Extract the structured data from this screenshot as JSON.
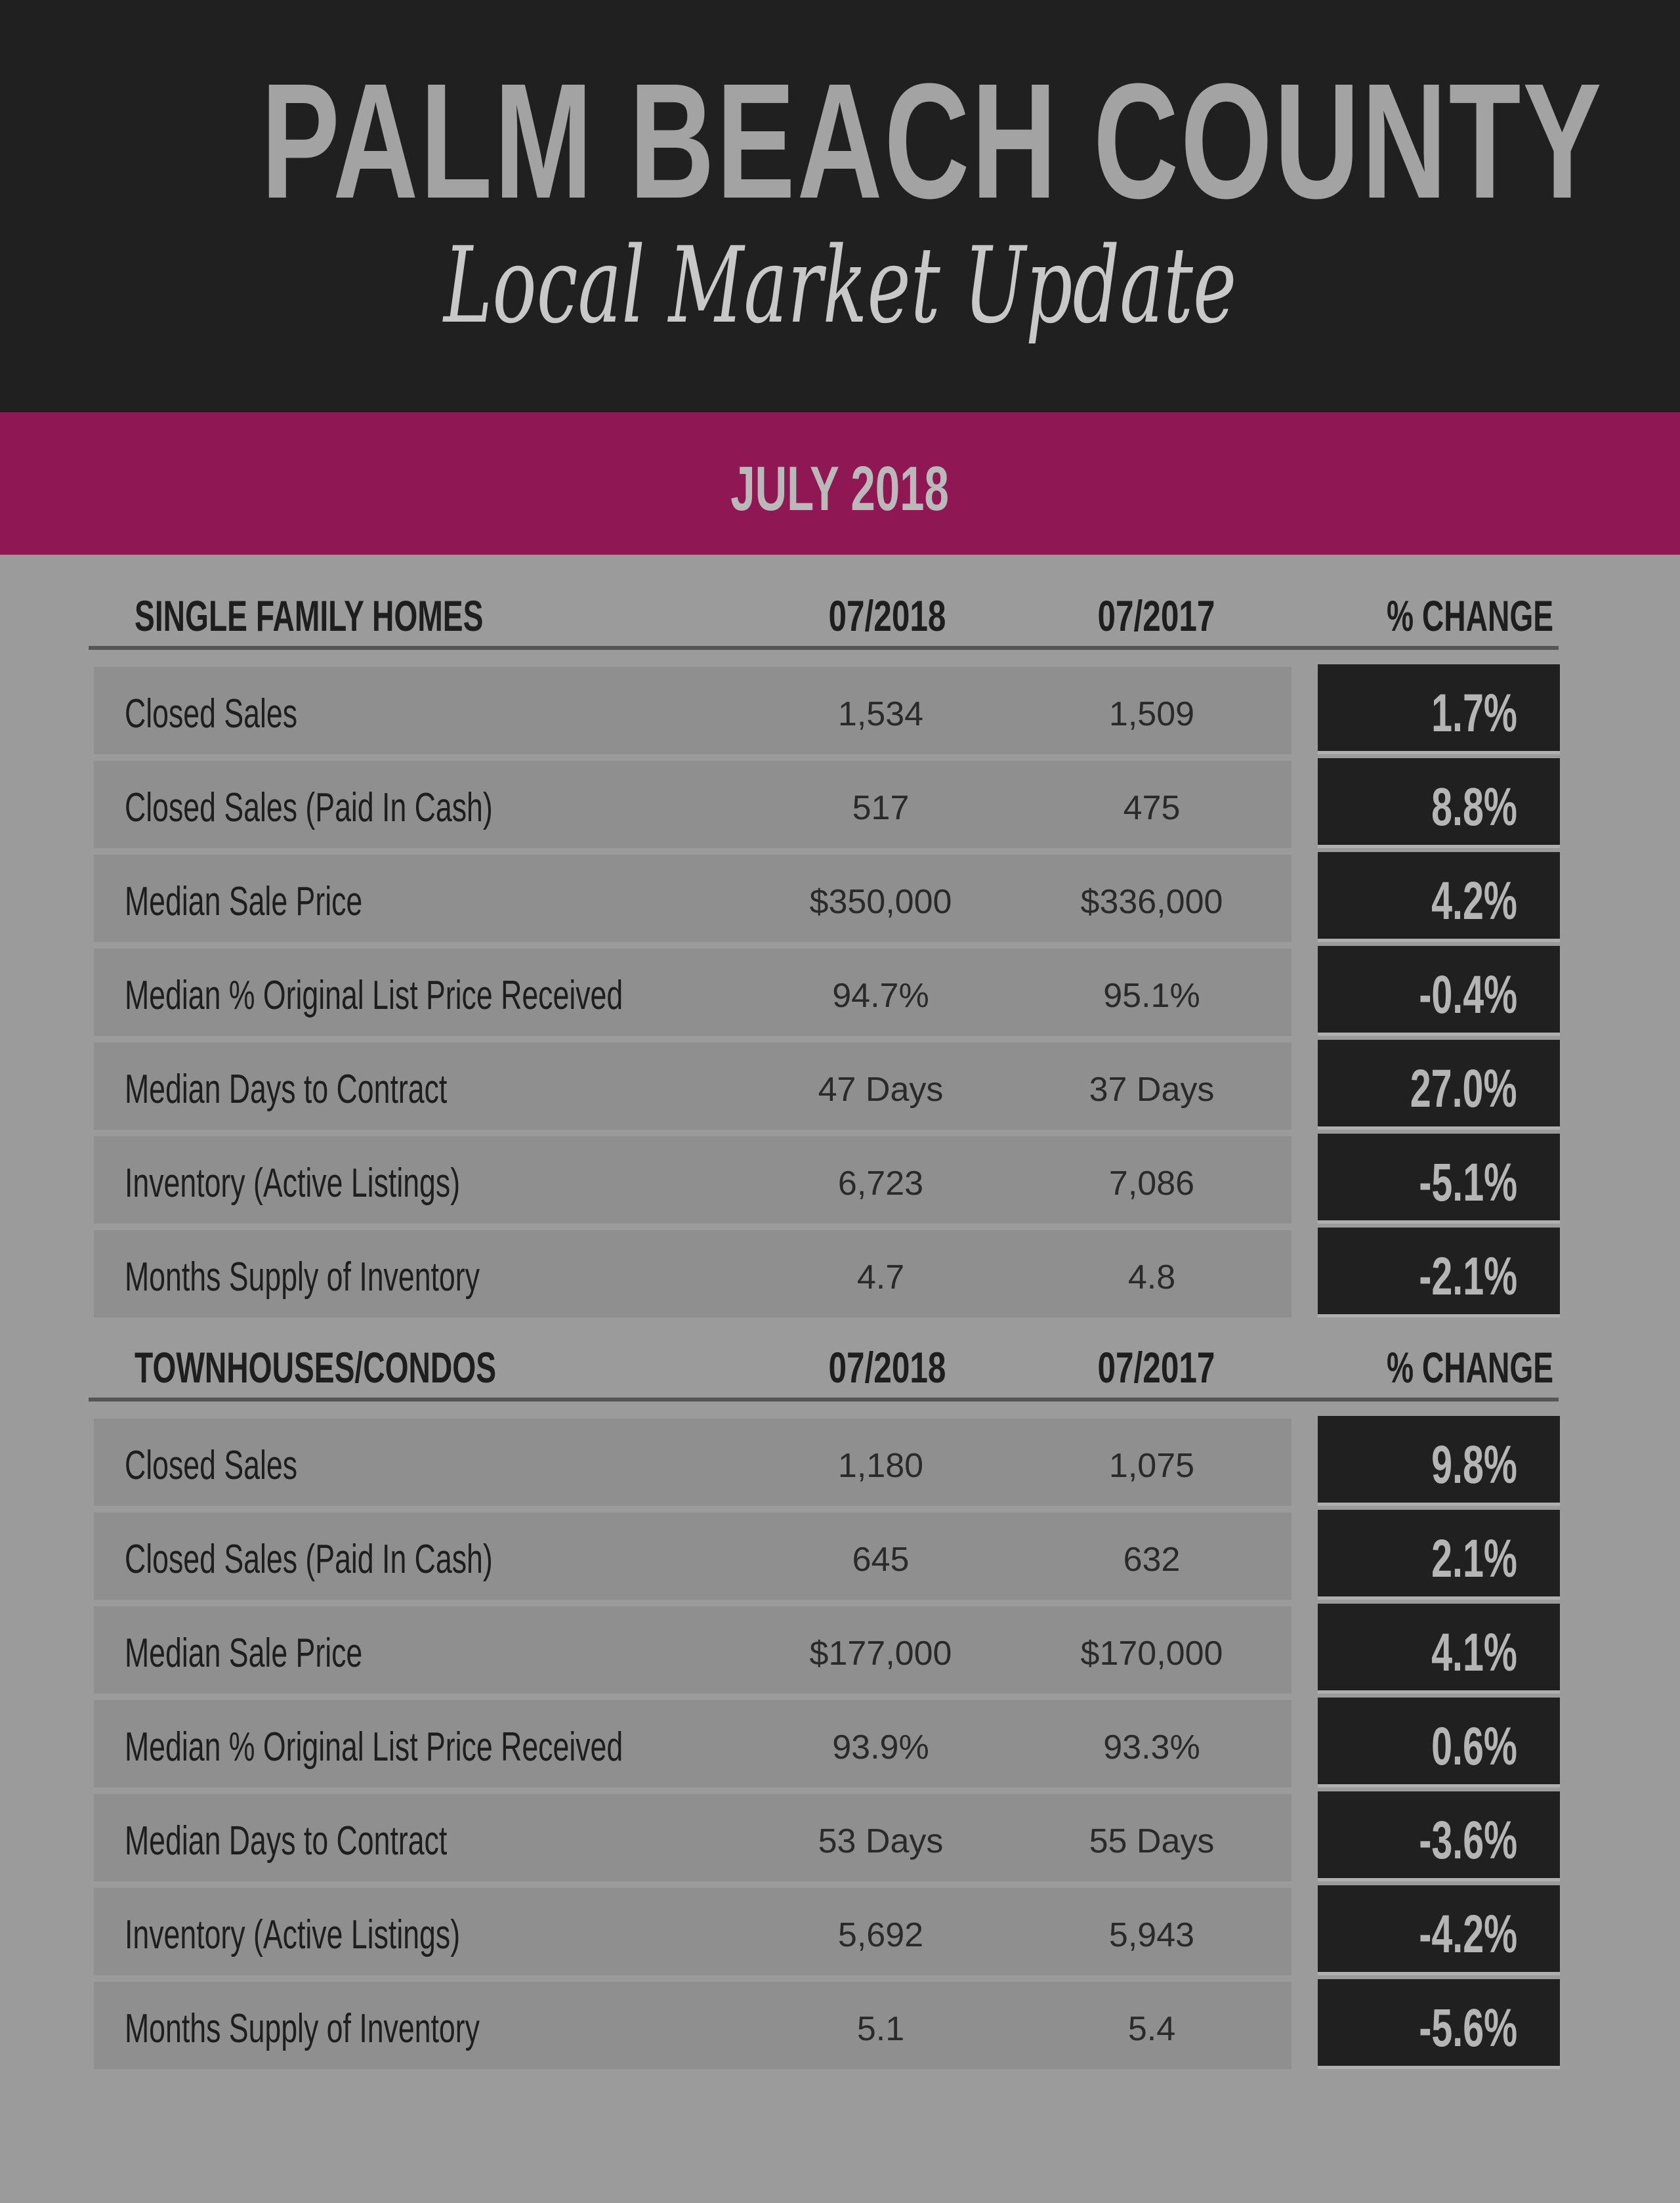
{
  "header": {
    "title": "PALM BEACH COUNTY",
    "subtitle": "Local Market Update",
    "period": "JULY 2018"
  },
  "colors": {
    "header_bg": "#202020",
    "accent": "#8e1754",
    "page_bg": "#9b9b9b",
    "row_bg": "#8f8f8f",
    "change_bg": "#202020"
  },
  "sections": [
    {
      "title": "SINGLE FAMILY HOMES",
      "col1": "07/2018",
      "col2": "07/2017",
      "col3": "% CHANGE",
      "rows": [
        {
          "label": "Closed Sales",
          "v1": "1,534",
          "v2": "1,509",
          "pct": "1.7%"
        },
        {
          "label": "Closed Sales (Paid In Cash)",
          "v1": "517",
          "v2": "475",
          "pct": "8.8%"
        },
        {
          "label": "Median Sale Price",
          "v1": "$350,000",
          "v2": "$336,000",
          "pct": "4.2%"
        },
        {
          "label": "Median % Original List Price Received",
          "v1": "94.7%",
          "v2": "95.1%",
          "pct": "-0.4%"
        },
        {
          "label": "Median Days to Contract",
          "v1": "47 Days",
          "v2": "37 Days",
          "pct": "27.0%"
        },
        {
          "label": "Inventory (Active Listings)",
          "v1": "6,723",
          "v2": "7,086",
          "pct": "-5.1%"
        },
        {
          "label": "Months Supply of Inventory",
          "v1": "4.7",
          "v2": "4.8",
          "pct": "-2.1%"
        }
      ]
    },
    {
      "title": "TOWNHOUSES/CONDOS",
      "col1": "07/2018",
      "col2": "07/2017",
      "col3": "% CHANGE",
      "rows": [
        {
          "label": "Closed Sales",
          "v1": "1,180",
          "v2": "1,075",
          "pct": "9.8%"
        },
        {
          "label": "Closed Sales (Paid In Cash)",
          "v1": "645",
          "v2": "632",
          "pct": "2.1%"
        },
        {
          "label": "Median Sale Price",
          "v1": "$177,000",
          "v2": "$170,000",
          "pct": "4.1%"
        },
        {
          "label": "Median % Original List Price Received",
          "v1": "93.9%",
          "v2": "93.3%",
          "pct": "0.6%"
        },
        {
          "label": "Median Days to Contract",
          "v1": "53 Days",
          "v2": "55 Days",
          "pct": "-3.6%"
        },
        {
          "label": "Inventory (Active Listings)",
          "v1": "5,692",
          "v2": "5,943",
          "pct": "-4.2%"
        },
        {
          "label": "Months Supply of Inventory",
          "v1": "5.1",
          "v2": "5.4",
          "pct": "-5.6%"
        }
      ]
    }
  ]
}
